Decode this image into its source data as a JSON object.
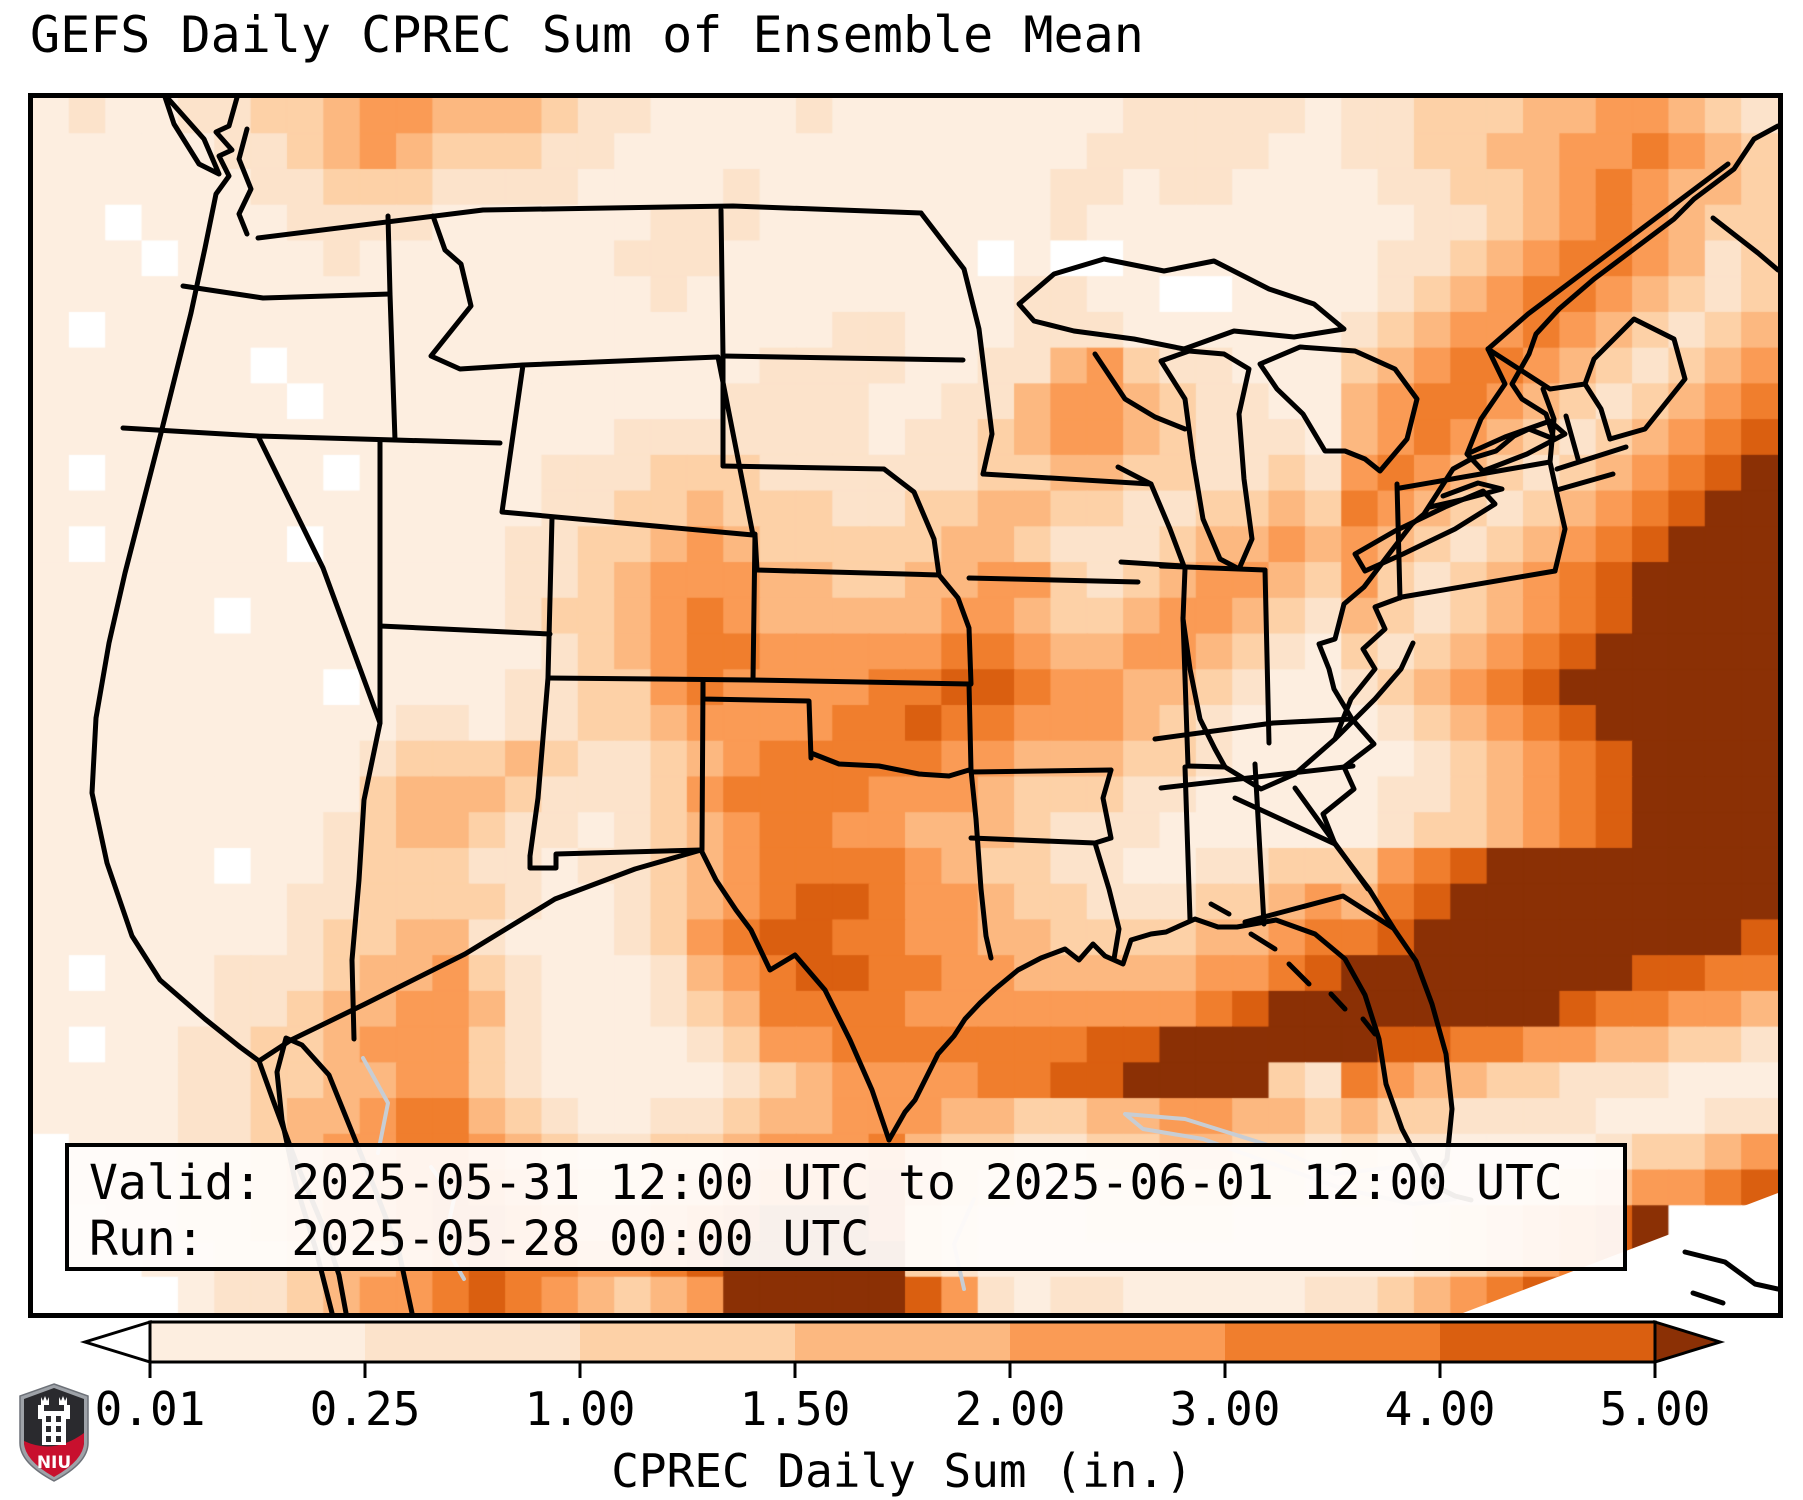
{
  "title": "GEFS Daily CPREC Sum of Ensemble Mean",
  "info_box": {
    "valid_line": "Valid: 2025-05-31 12:00 UTC to 2025-06-01 12:00 UTC",
    "run_line": "Run:   2025-05-28 00:00 UTC"
  },
  "colorbar": {
    "label": "CPREC Daily Sum (in.)",
    "ticks": [
      {
        "value": 0.01,
        "label": "0.01"
      },
      {
        "value": 0.25,
        "label": "0.25"
      },
      {
        "value": 1.0,
        "label": "1.00"
      },
      {
        "value": 1.5,
        "label": "1.50"
      },
      {
        "value": 2.0,
        "label": "2.00"
      },
      {
        "value": 3.0,
        "label": "3.00"
      },
      {
        "value": 4.0,
        "label": "4.00"
      },
      {
        "value": 5.0,
        "label": "5.00"
      }
    ],
    "segment_colors": [
      "#fdeee0",
      "#fce3cb",
      "#fdd1a7",
      "#fcb880",
      "#fa9b55",
      "#f07e2d",
      "#da5f10"
    ],
    "under_color": "#ffffff",
    "over_color": "#8b3005"
  },
  "logo": {
    "text": "NIU",
    "shield_dark": "#2a2a2e",
    "shield_red": "#c8102e",
    "shield_trim": "#9ea2a8"
  },
  "chart_data": {
    "type": "heatmap",
    "title": "GEFS Daily CPREC Sum of Ensemble Mean",
    "colorbar_label": "CPREC Daily Sum (in.)",
    "units": "inches",
    "valid_period": "2025-05-31 12:00 UTC to 2025-06-01 12:00 UTC",
    "run_time": "2025-05-28 00:00 UTC",
    "boundaries_in": [
      0.01,
      0.25,
      1.0,
      1.5,
      2.0,
      3.0,
      4.0,
      5.0
    ],
    "level_ranges": {
      ".": "< 0.01",
      "1": "0.01 - 0.25",
      "2": "0.25 - 1.00",
      "3": "1.00 - 1.50",
      "4": "1.50 - 2.00",
      "5": "2.00 - 3.00",
      "6": "3.00 - 4.00",
      "7": "4.00 - 5.00",
      "8": "> 5.00"
    },
    "palette": {
      ".": "#ffffff",
      "1": "#fdeee0",
      "2": "#fce3cb",
      "3": "#fdd1a7",
      "4": "#fcb880",
      "5": "#fa9b55",
      "6": "#f07e2d",
      "7": "#da5f10",
      "8": "#8b3005"
    },
    "grid_shape": [
      34,
      48
    ],
    "grid_rows": [
      "121122334554443221111211111111222221223334455432",
      "111112234543332211111111111112222211223344556543",
      "111111223332222111121111111122122111122334565443",
      "11.111122221111112221111111121111111112234565433",
      "111.1111211111112221111111.1..111111122345665423",
      "1111111111111111121111111112211..111123456654323",
      "1.1111111111111111111122111222111111234556543234",
      "111111.11111111111112222112245322111345665432345",
      "1111111.1111111111122221122455432211456654323456",
      "111111111111111122222221223455432221456543234567",
      "1.111111.111112223332222223344332232565432345678",
      "111111111111112233433322334433223343654323456788",
      "1.11111.1111122334543333344322234454543234567888",
      "111111111111122345554433445532345543532345678888",
      "11111.111111123345654444455433455432432345678888",
      "111111111111112345665555566544554321323456788888",
      "11111111.111122335655556677655443211234567888888",
      "111111111122122334555566766555432111123456788888",
      "111111111233343223456666655444332111112345678888",
      "111111111344432223566665554333221111122345678888",
      "111111112344322123456655444322211111123345678888",
      "11111.112333221223456666543322112233356788888888",
      "111111122333321123456776554332223345467888888888",
      "111111123344211123567766554433334456678888888887",
      "1.1112223445321112456776655444445567888888887766",
      "111112234455421112346666555555556788888888766554",
      "1.1122334555321111235566666667788888877665544332",
      "111122334455321111123455556677888832654433222111",
      "111122344566432112234455544334455443433222211122",
      ".11122345566543223345556433223344332322111123345",
      ".11122345567654334456667432112233221211112345567",
      "..1122345567765445678887321112222111112345678 ..",
      "...112234456766556788888321111111111112345678...",
      "....12234556765434588888752122111112234567 8...."
    ],
    "geography": "CONUS with state borders, Canada, Mexico, Cuba, Bahamas; Lambert-like projection",
    "notable_features": [
      "Dark (>5 in) band offshore of the US Southeast Atlantic coast and over north Florida",
      "Heavy precipitation over central/southern Texas and the eastern Gulf of Mexico",
      "Orange band over Colorado, Kansas and Oklahoma plains",
      "Orange band over New England and the St. Lawrence valley",
      "Dark maximum over interior Mexico at bottom of map",
      "Pale/dry conditions over California, Great Basin and northern Plains"
    ]
  }
}
